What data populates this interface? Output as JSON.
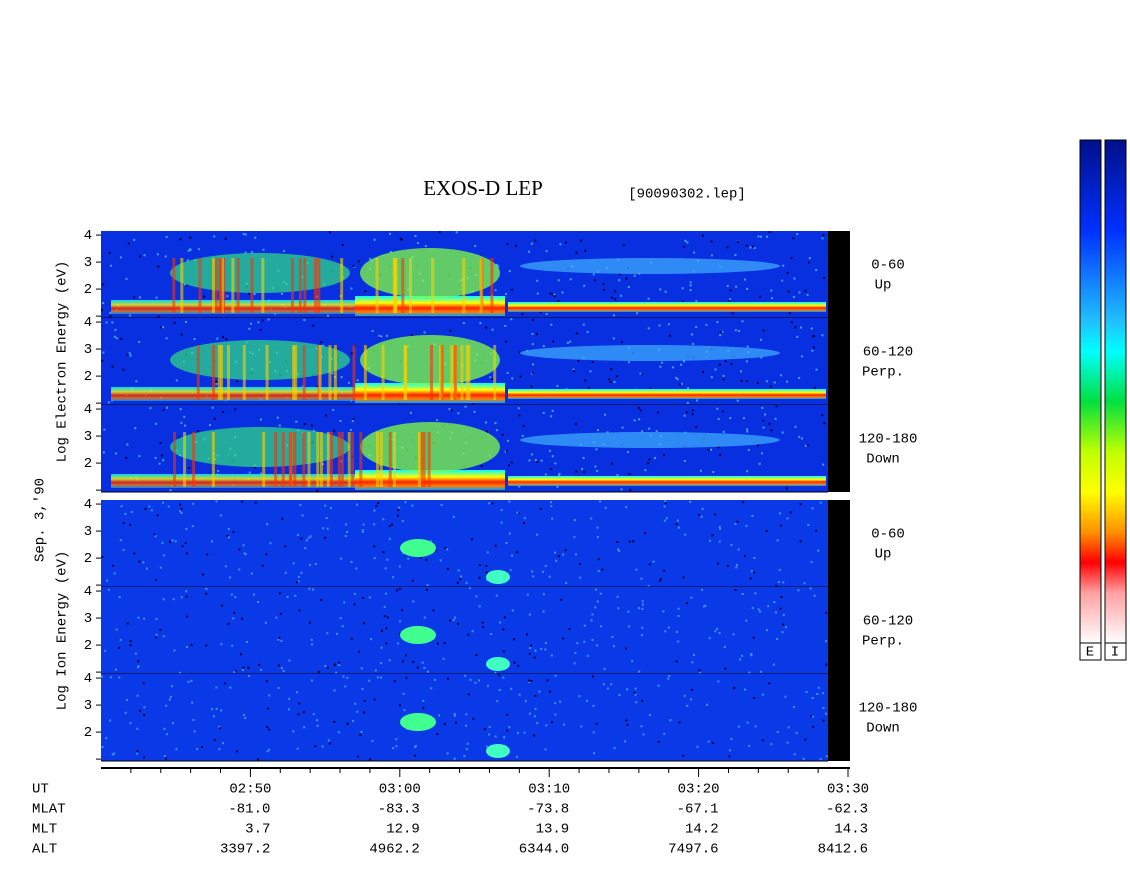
{
  "title": "EXOS-D LEP",
  "file": "[90090302.lep]",
  "chart_data": {
    "type": "spectrogram",
    "date_label": "Sep. 3,'90",
    "groups": [
      {
        "label": "Log Electron Energy (eV)",
        "panels": [
          {
            "angle": "0-60",
            "direction": "Up"
          },
          {
            "angle": "60-120",
            "direction": "Perp."
          },
          {
            "angle": "120-180",
            "direction": "Down"
          }
        ]
      },
      {
        "label": "Log Ion Energy (eV)",
        "panels": [
          {
            "angle": "0-60",
            "direction": "Up"
          },
          {
            "angle": "60-120",
            "direction": "Perp."
          },
          {
            "angle": "120-180",
            "direction": "Down"
          }
        ]
      }
    ],
    "ylim": [
      0.93,
      4.15
    ],
    "yticks": [
      2,
      3,
      4
    ],
    "yminorticks": [
      1
    ],
    "xlim": [
      40,
      90
    ],
    "xticks": [
      {
        "value": 50,
        "label": "02:50"
      },
      {
        "value": 60,
        "label": "03:00"
      },
      {
        "value": 70,
        "label": "03:10"
      },
      {
        "value": 80,
        "label": "03:20"
      },
      {
        "value": 90,
        "label": "03:30"
      }
    ],
    "xminorticks": [
      42,
      44,
      46,
      48,
      52,
      54,
      56,
      58,
      62,
      64,
      66,
      68,
      72,
      74,
      76,
      78,
      82,
      84,
      86,
      88
    ],
    "xlabel": "UT",
    "table": [
      {
        "label": "MLAT",
        "values": [
          "-81.0",
          "-83.3",
          "-73.8",
          "-67.1",
          "-62.3"
        ]
      },
      {
        "label": "MLT",
        "values": [
          "3.7",
          "12.9",
          "13.9",
          "14.2",
          "14.3"
        ]
      },
      {
        "label": "ALT",
        "values": [
          "3397.2",
          "4962.2",
          "6344.0",
          "7497.6",
          "8412.6"
        ]
      }
    ],
    "colorbar_labels": [
      "E",
      "I"
    ]
  }
}
